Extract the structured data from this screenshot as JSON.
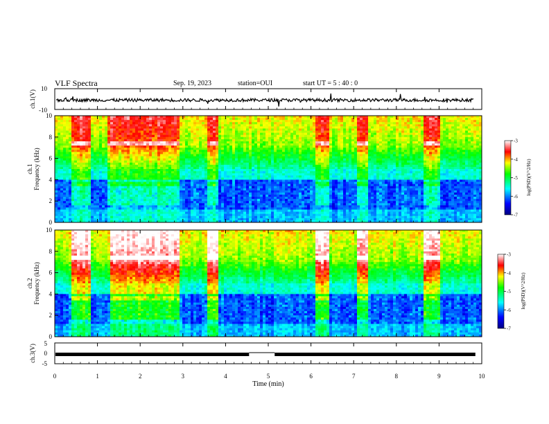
{
  "header": {
    "title": "VLF Spectra",
    "date": "Sep. 19, 2023",
    "station": "station=OUI",
    "start_ut": "start  UT =   5 : 40 : 0"
  },
  "chart_data": [
    {
      "type": "line",
      "ylabel": "ch.1(V)",
      "ylim": [
        -10,
        10
      ],
      "ytick_labels": [
        "10",
        "-10"
      ],
      "xlim": [
        0,
        10
      ],
      "note_series": "dense waveform centered near -1 V"
    },
    {
      "type": "heatmap",
      "ylabel_channel": "ch.1",
      "ylabel": "Frequency (kHz)",
      "ylim": [
        0,
        10
      ],
      "ytick_labels": [
        "0",
        "2",
        "4",
        "6",
        "8",
        "10"
      ],
      "xlim": [
        0,
        10
      ],
      "colorbar": {
        "label": "log(PSD)(V^2/Hz)",
        "ticks": [
          "-3",
          "-4",
          "-5",
          "-6",
          "-7"
        ],
        "range": [
          -7,
          -3
        ]
      },
      "bursts_min": [
        [
          0.38,
          0.82
        ],
        [
          1.25,
          2.95
        ],
        [
          3.55,
          3.85
        ],
        [
          6.1,
          6.45
        ],
        [
          7.1,
          7.35
        ],
        [
          8.65,
          9.05
        ]
      ]
    },
    {
      "type": "heatmap",
      "ylabel_channel": "ch.2",
      "ylabel": "Frequency (kHz)",
      "ylim": [
        0,
        10
      ],
      "ytick_labels": [
        "0",
        "2",
        "4",
        "6",
        "8",
        "10"
      ],
      "xlim": [
        0,
        10
      ],
      "colorbar": {
        "label": "log(PSD)(V^2/Hz)",
        "ticks": [
          "-3",
          "-4",
          "-5",
          "-6",
          "-7"
        ],
        "range": [
          -7,
          -3
        ]
      },
      "bursts_min": [
        [
          0.4,
          0.85
        ],
        [
          1.3,
          2.95
        ],
        [
          3.6,
          3.85
        ],
        [
          6.1,
          6.45
        ],
        [
          7.1,
          7.35
        ],
        [
          8.65,
          9.05
        ]
      ]
    },
    {
      "type": "line",
      "ylabel": "ch.3(V)",
      "ylim": [
        -5,
        5
      ],
      "ytick_labels": [
        "5",
        "0",
        "-5"
      ],
      "xlim": [
        0,
        10
      ],
      "level_v": -0.5,
      "gap_min": [
        4.55,
        5.15
      ]
    }
  ],
  "xaxis": {
    "label": "Time (min)",
    "ticks": [
      "0",
      "1",
      "2",
      "3",
      "4",
      "5",
      "6",
      "7",
      "8",
      "9",
      "10"
    ]
  }
}
